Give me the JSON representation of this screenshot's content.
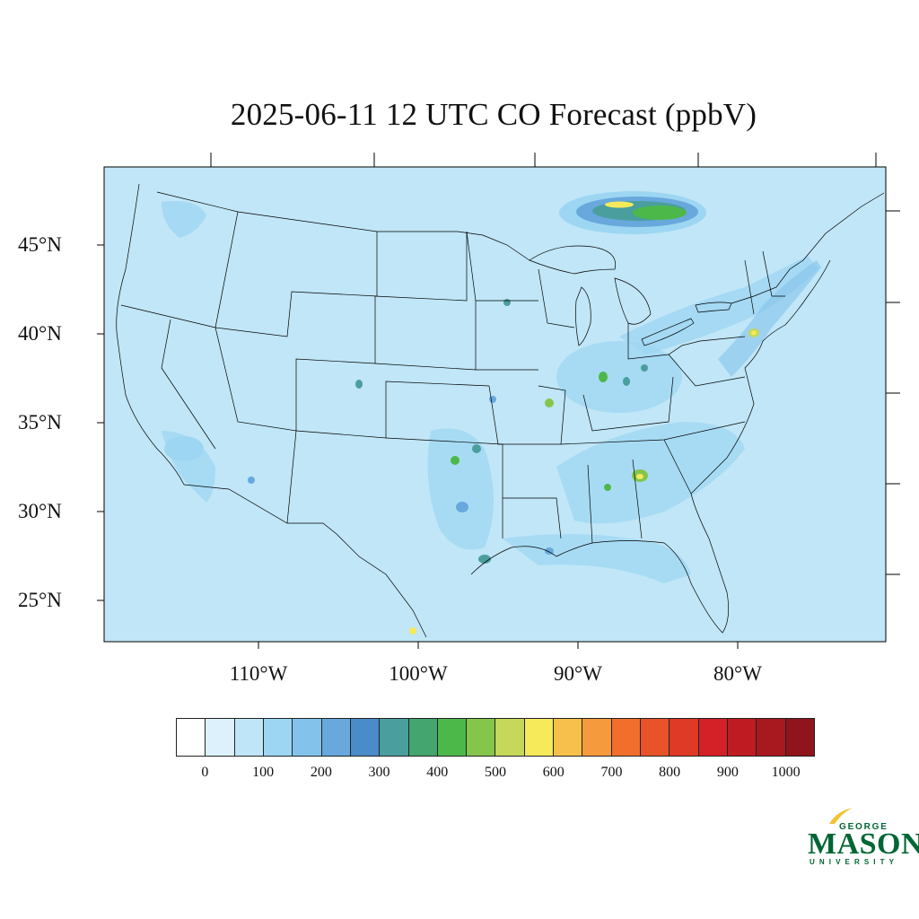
{
  "title": "2025-06-11 12 UTC CO Forecast (ppbV)",
  "map": {
    "background_color": "#c0e6f7",
    "lat_labels": [
      "45°N",
      "40°N",
      "35°N",
      "30°N",
      "25°N"
    ],
    "lon_labels": [
      "110°W",
      "100°W",
      "90°W",
      "80°W"
    ]
  },
  "colorbar": {
    "colors": [
      "#ffffff",
      "#dcf1fb",
      "#bfe6f8",
      "#9dd6f2",
      "#83c3eb",
      "#68a8dc",
      "#4a8bc9",
      "#4a9e9e",
      "#44a66e",
      "#4db84a",
      "#84c54c",
      "#c5d85a",
      "#f6e95a",
      "#f6c04a",
      "#f59a3d",
      "#f26e2c",
      "#e8532a",
      "#df3a26",
      "#d42027",
      "#bf1b23",
      "#a8181f",
      "#8f141b"
    ],
    "tick_labels": [
      "0",
      "100",
      "200",
      "300",
      "400",
      "500",
      "600",
      "700",
      "800",
      "900",
      "1000"
    ]
  },
  "logo": {
    "line1": "GEORGE",
    "line2": "MASON",
    "line3": "UNIVERSITY",
    "color": "#006633",
    "accent": "#f1c232"
  }
}
